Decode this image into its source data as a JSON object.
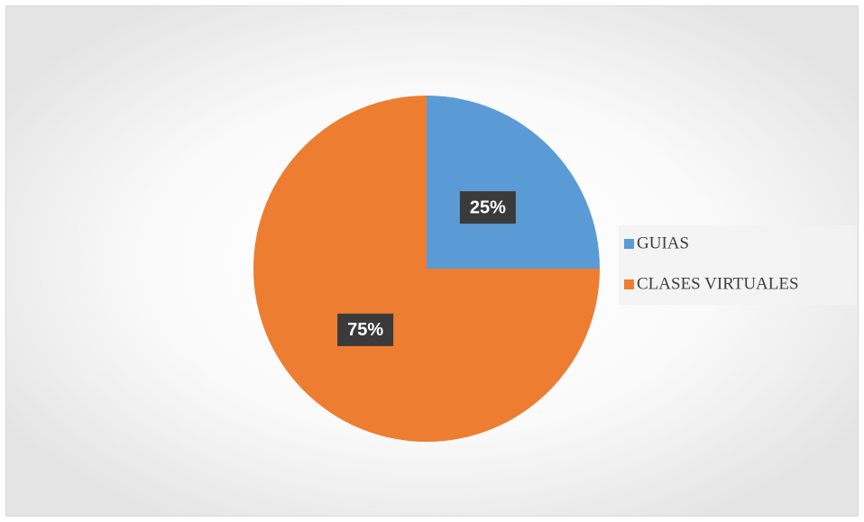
{
  "chart_data": {
    "type": "pie",
    "categories": [
      "GUIAS",
      "CLASES VIRTUALES"
    ],
    "values": [
      25,
      75
    ],
    "value_labels": [
      "25%",
      "75%"
    ],
    "colors": [
      "#5b9bd5",
      "#ed7d31"
    ],
    "legend": "right"
  }
}
